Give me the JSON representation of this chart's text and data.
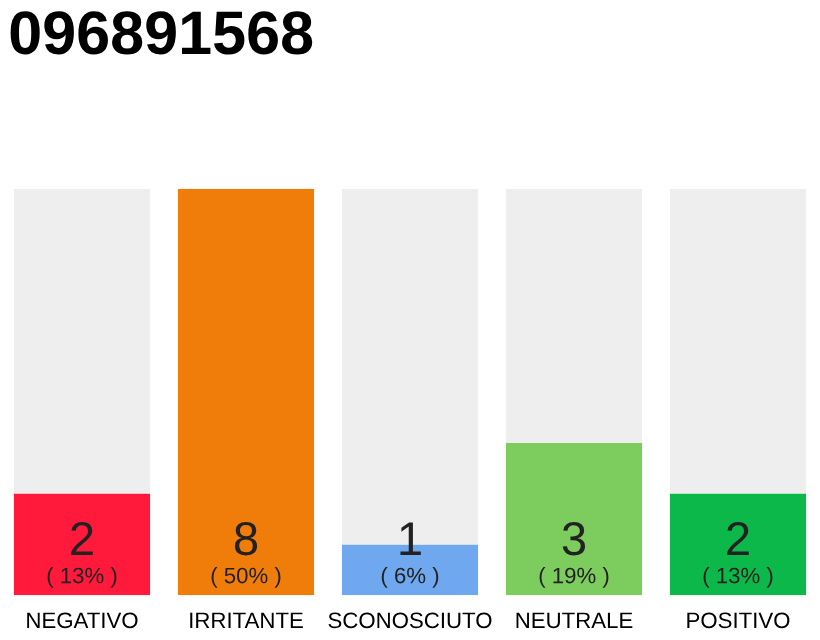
{
  "chart_data": {
    "type": "bar",
    "title": "096891568",
    "categories": [
      "NEGATIVO",
      "IRRITANTE",
      "SCONOSCIUTO",
      "NEUTRALE",
      "POSITIVO"
    ],
    "stacked": true,
    "series": [
      {
        "colors": [
          "#ff1a3c",
          "#f07c0a",
          "#6fa8ef",
          "#7dcc5e",
          "#0db84a"
        ],
        "values": [
          2,
          8,
          1,
          3,
          2
        ],
        "value_labels": [
          "2\n( 13% )",
          "8\n( 50% )",
          "1\n( 6% )",
          "3\n( 19% )",
          "2\n( 13% )"
        ]
      },
      {
        "color": "#eeeeee",
        "values": [
          6,
          0,
          7,
          5,
          6
        ]
      }
    ],
    "grid": false,
    "legend": false
  }
}
